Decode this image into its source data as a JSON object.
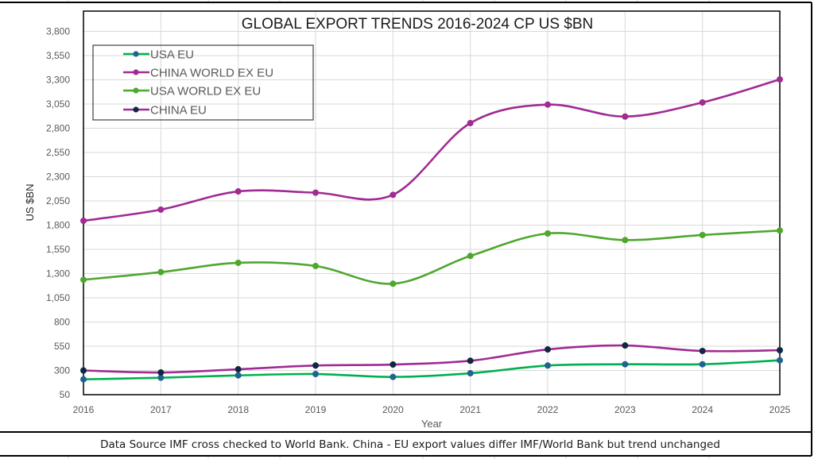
{
  "chart_data": {
    "type": "line",
    "title": "GLOBAL EXPORT TRENDS 2016-2024 CP US $BN",
    "xlabel": "Year",
    "ylabel": "US $BN",
    "x": [
      "2016",
      "2017",
      "2018",
      "2019",
      "2020",
      "2021",
      "2022",
      "2023",
      "2024",
      "2025"
    ],
    "ylim": [
      50,
      3800
    ],
    "yticks": [
      50,
      300,
      550,
      800,
      1050,
      1300,
      1550,
      1800,
      2050,
      2300,
      2550,
      2800,
      3050,
      3300,
      3550,
      3800
    ],
    "ytick_labels": [
      "50",
      "300",
      "550",
      "800",
      "1,050",
      "1,300",
      "1,550",
      "1,800",
      "2,050",
      "2,300",
      "2,550",
      "2,800",
      "3,050",
      "3,300",
      "3,550",
      "3,800"
    ],
    "grid": true,
    "smoothed": true,
    "legend_position": "top-left",
    "series": [
      {
        "name": "USA EU",
        "line_color": "#00B050",
        "marker_color": "#1F6391",
        "values": [
          208,
          225,
          249,
          263,
          233,
          271,
          351,
          364,
          364,
          405
        ]
      },
      {
        "name": "CHINA WORLD EX EU",
        "line_color": "#A02B93",
        "marker_color": "#A02B93",
        "values": [
          1845,
          1960,
          2148,
          2135,
          2113,
          2853,
          3044,
          2921,
          3066,
          3304
        ]
      },
      {
        "name": "USA WORLD EX EU",
        "line_color": "#4EA72E",
        "marker_color": "#4EA72E",
        "values": [
          1236,
          1315,
          1411,
          1378,
          1195,
          1482,
          1714,
          1646,
          1698,
          1744
        ]
      },
      {
        "name": "CHINA EU",
        "line_color": "#A02B93",
        "marker_color": "#0E2841",
        "values": [
          300,
          279,
          312,
          351,
          361,
          400,
          517,
          558,
          501,
          509
        ]
      }
    ]
  },
  "footer": {
    "note": "Data Source IMF cross checked to World Bank. China - EU export values differ IMF/World Bank but trend unchanged"
  }
}
